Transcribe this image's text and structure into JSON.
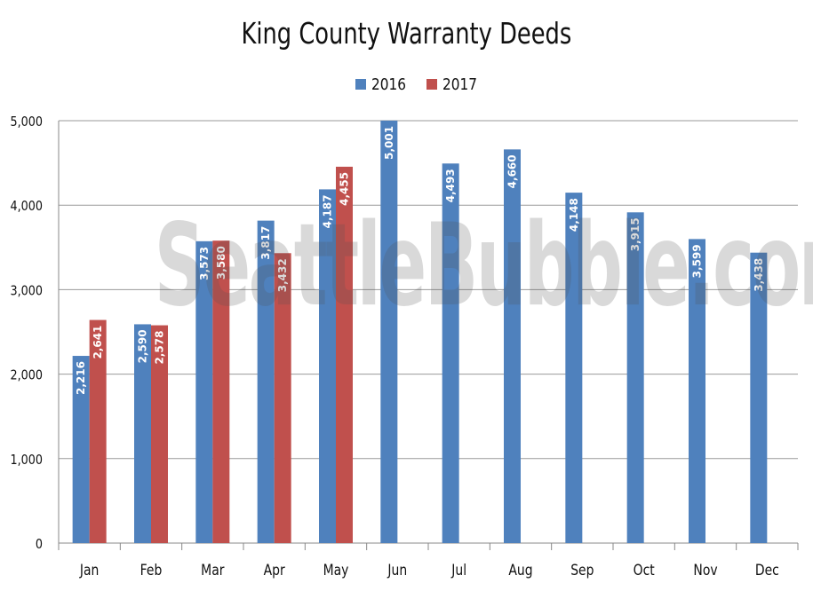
{
  "chart_data": {
    "type": "bar",
    "title": "King County Warranty Deeds",
    "categories": [
      "Jan",
      "Feb",
      "Mar",
      "Apr",
      "May",
      "Jun",
      "Jul",
      "Aug",
      "Sep",
      "Oct",
      "Nov",
      "Dec"
    ],
    "series": [
      {
        "name": "2016",
        "color": "#4F81BD",
        "values": [
          2216,
          2590,
          3573,
          3817,
          4187,
          5001,
          4493,
          4660,
          4148,
          3915,
          3599,
          3438
        ],
        "labels": [
          "2,216",
          "2,590",
          "3,573",
          "3,817",
          "4,187",
          "5,001",
          "4,493",
          "4,660",
          "4,148",
          "3,915",
          "3,599",
          "3,438"
        ]
      },
      {
        "name": "2017",
        "color": "#C0504D",
        "values": [
          2641,
          2578,
          3580,
          3432,
          4455,
          null,
          null,
          null,
          null,
          null,
          null,
          null
        ],
        "labels": [
          "2,641",
          "2,578",
          "3,580",
          "3,432",
          "4,455",
          null,
          null,
          null,
          null,
          null,
          null,
          null
        ]
      }
    ],
    "ylim": [
      0,
      5000
    ],
    "yticks": [
      0,
      1000,
      2000,
      3000,
      4000,
      5000
    ],
    "ytick_labels": [
      "0",
      "1,000",
      "2,000",
      "3,000",
      "4,000",
      "5,000"
    ],
    "grid": true,
    "legend": "top-center",
    "xlabel": "",
    "ylabel": ""
  },
  "watermark": "SeattleBubble.com"
}
